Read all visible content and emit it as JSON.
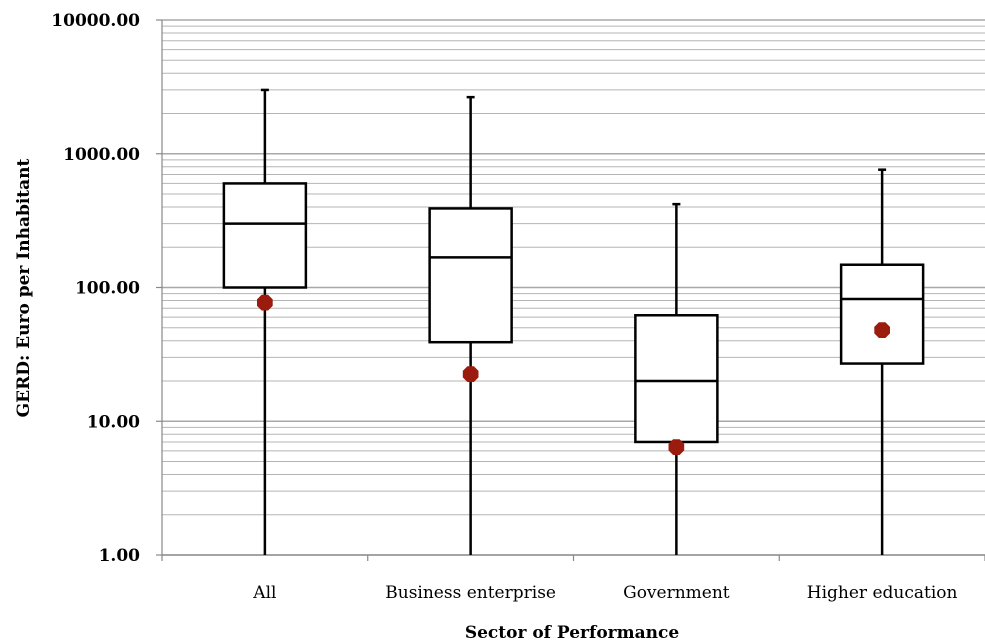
{
  "chart_data": {
    "type": "box",
    "xlabel": "Sector of Performance",
    "ylabel": "GERD: Euro per Inhabitant",
    "yscale": "log",
    "ylim": [
      1,
      10000
    ],
    "grid": true,
    "ytick_labels": [
      "1.00",
      "10.00",
      "100.00",
      "1000.00",
      "10000.00"
    ],
    "yticks": [
      1,
      10,
      100,
      1000,
      10000
    ],
    "categories": [
      "All",
      "Business enterprise",
      "Government",
      "Higher education"
    ],
    "boxes": [
      {
        "min": 1.0,
        "q1": 100,
        "median": 300,
        "q3": 600,
        "max": 3000,
        "marker": 77
      },
      {
        "min": 1.0,
        "q1": 39,
        "median": 168,
        "q3": 390,
        "max": 2650,
        "marker": 22.5
      },
      {
        "min": 1.0,
        "q1": 7,
        "median": 20,
        "q3": 62,
        "max": 420,
        "marker": 6.4
      },
      {
        "min": 1.0,
        "q1": 27,
        "median": 82,
        "q3": 148,
        "max": 760,
        "marker": 48
      }
    ],
    "colors": {
      "grid": "#b5b5b5",
      "box": "#000000",
      "marker": "#9b1c0e"
    }
  }
}
